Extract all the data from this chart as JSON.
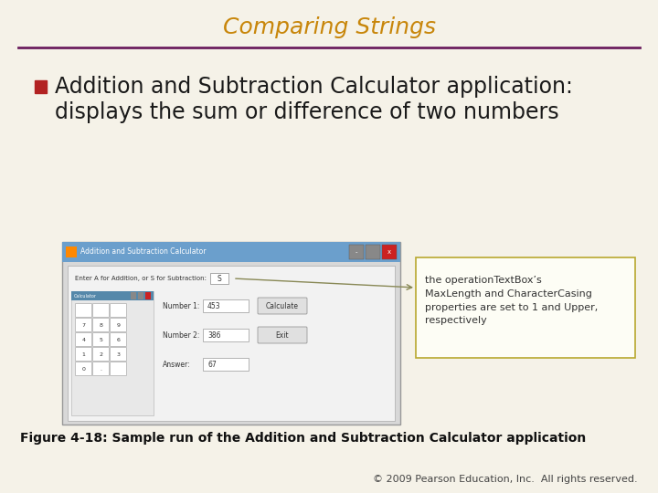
{
  "title": "Comparing Strings",
  "title_color": "#C8860A",
  "title_fontsize": 18,
  "line_color": "#6B1F5E",
  "bg_color": "#F5F2E8",
  "bullet_color": "#B22222",
  "bullet_text_line1": "Addition and Subtraction Calculator application:",
  "bullet_text_line2": "displays the sum or difference of two numbers",
  "bullet_fontsize": 17,
  "figure_caption": "Figure 4-18: Sample run of the Addition and Subtraction Calculator application",
  "caption_fontsize": 10,
  "copyright_text": "© 2009 Pearson Education, Inc.  All rights reserved.",
  "copyright_fontsize": 8,
  "annotation_text": "the operationTextBox’s\nMaxLength and CharacterCasing\nproperties are set to 1 and Upper,\nrespectively",
  "annotation_fontsize": 8,
  "annotation_border_color": "#B8A830",
  "annotation_bg": "#FDFDF5"
}
